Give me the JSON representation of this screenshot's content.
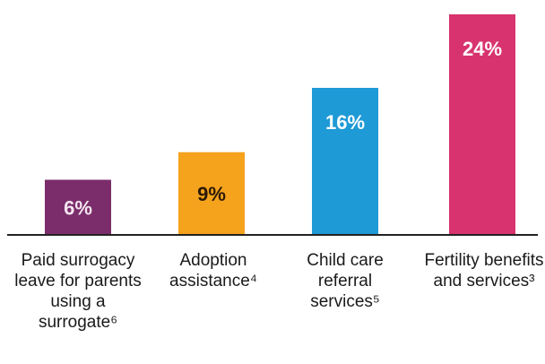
{
  "chart_data": {
    "type": "bar",
    "categories": [
      [
        "Paid surrogacy",
        "leave for parents",
        "using a",
        "surrogate⁶"
      ],
      [
        "Adoption",
        "assistance⁴"
      ],
      [
        "Child care",
        "referral",
        "services⁵"
      ],
      [
        "Fertility benefits",
        "and services³"
      ]
    ],
    "values": [
      6,
      9,
      16,
      24
    ],
    "data_labels": [
      "6%",
      "9%",
      "16%",
      "24%"
    ],
    "unit": "%",
    "ylim": [
      0,
      25
    ],
    "colors": [
      "#7b2d6b",
      "#f5a21d",
      "#1e9ad6",
      "#d8336e"
    ],
    "label_colors": [
      "#f3e6ef",
      "#2a1a05",
      "#ffffff",
      "#ffffff"
    ],
    "baseline_color": "#222222",
    "grid": false,
    "legend": "none"
  }
}
